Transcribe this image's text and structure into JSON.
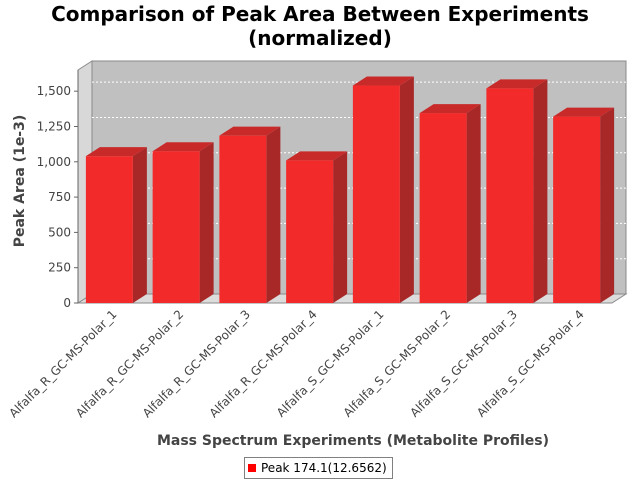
{
  "chart_data": {
    "type": "bar",
    "title_line1": "Comparison of Peak Area Between Experiments",
    "title_line2": "(normalized)",
    "xlabel": "Mass Spectrum Experiments (Metabolite Profiles)",
    "ylabel": "Peak Area (1e-3)",
    "categories": [
      "Alfalfa_R_GC-MS-Polar_1",
      "Alfalfa_R_GC-MS-Polar_2",
      "Alfalfa_R_GC-MS-Polar_3",
      "Alfalfa_R_GC-MS-Polar_4",
      "Alfalfa_S_GC-MS-Polar_1",
      "Alfalfa_S_GC-MS-Polar_2",
      "Alfalfa_S_GC-MS-Polar_3",
      "Alfalfa_S_GC-MS-Polar_4"
    ],
    "series": [
      {
        "name": "Peak 174.1(12.6562)",
        "color": "#ff0000",
        "values": [
          1040,
          1075,
          1185,
          1010,
          1540,
          1345,
          1520,
          1320
        ]
      }
    ],
    "ylim": [
      0,
      1650
    ],
    "yticks": [
      "0",
      "250",
      "500",
      "750",
      "1,000",
      "1,250",
      "1,500"
    ],
    "ytick_values": [
      0,
      250,
      500,
      750,
      1000,
      1250,
      1500
    ],
    "grid": true,
    "legend_position": "bottom",
    "plot_background": "#c0c0c0"
  }
}
